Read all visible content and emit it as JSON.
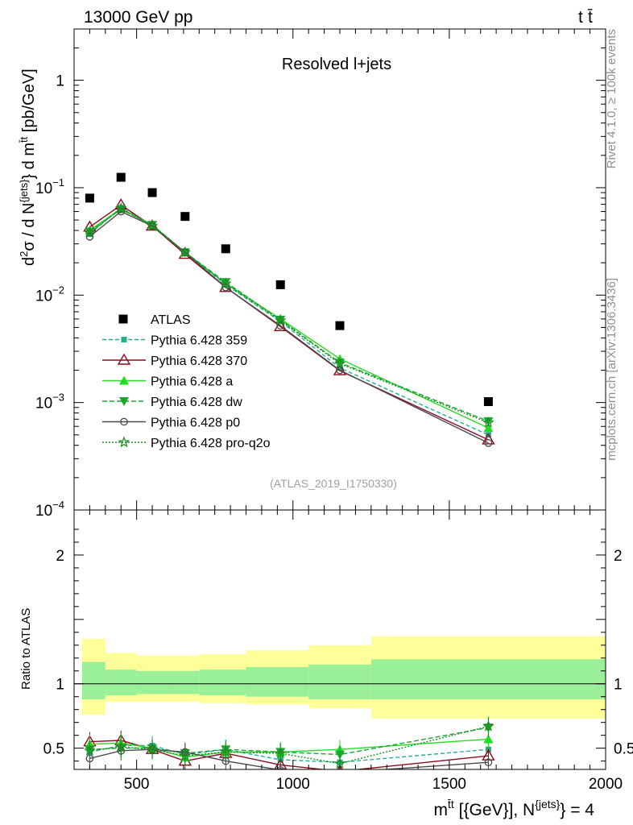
{
  "header": {
    "left": "13000 GeV pp",
    "right_base": "t",
    "right_bar": "t̄"
  },
  "side_labels": {
    "rivet": "Rivet 4.1.0, ≥ 100k events",
    "mcplots": "mcplots.cern.ch [arXiv:1306.3436]"
  },
  "chart_data": [
    {
      "type": "line",
      "title": "Resolved l+jets",
      "watermark": "(ATLAS_2019_I1750330)",
      "ylabel": "d²σ / d N^{jets} d m^{t̄t} [pb/GeV]",
      "yscale": "log",
      "ylim": [
        0.0001,
        3
      ],
      "y_ticks": [
        {
          "value": 1,
          "base": "1",
          "exp": ""
        },
        {
          "value": 0.1,
          "base": "10",
          "exp": "−1"
        },
        {
          "value": 0.01,
          "base": "10",
          "exp": "−2"
        },
        {
          "value": 0.001,
          "base": "10",
          "exp": "−3"
        },
        {
          "value": 0.0001,
          "base": "10",
          "exp": "−4"
        }
      ],
      "xlim": [
        300,
        2000
      ],
      "x": [
        350,
        450,
        550,
        655,
        785,
        960,
        1150,
        1625
      ],
      "reference": {
        "name": "ATLAS",
        "values": [
          0.08,
          0.125,
          0.09,
          0.054,
          0.027,
          0.0125,
          0.0052,
          0.00102
        ]
      },
      "series": [
        {
          "name": "Pythia 6.428 359",
          "color": "#20b090",
          "dash": "5,3",
          "marker": "square",
          "values": [
            0.037,
            0.065,
            0.045,
            0.025,
            0.0125,
            0.0057,
            0.0021,
            0.0005
          ]
        },
        {
          "name": "Pythia 6.428 370",
          "color": "#8b0b1e",
          "dash": "",
          "marker": "triangle-open",
          "values": [
            0.043,
            0.069,
            0.044,
            0.024,
            0.0118,
            0.0051,
            0.00198,
            0.00045
          ]
        },
        {
          "name": "Pythia 6.428 a",
          "color": "#22dd22",
          "dash": "",
          "marker": "triangle",
          "values": [
            0.04,
            0.064,
            0.045,
            0.025,
            0.0128,
            0.006,
            0.00255,
            0.00058
          ]
        },
        {
          "name": "Pythia 6.428 dw",
          "color": "#16a830",
          "dash": "6,3",
          "marker": "triangle-down",
          "values": [
            0.039,
            0.063,
            0.045,
            0.025,
            0.0132,
            0.0059,
            0.00235,
            0.00067
          ]
        },
        {
          "name": "Pythia 6.428 p0",
          "color": "#4a4a4a",
          "dash": "",
          "marker": "circle-open",
          "values": [
            0.035,
            0.06,
            0.044,
            0.025,
            0.0118,
            0.0052,
            0.002,
            0.00042
          ]
        },
        {
          "name": "Pythia 6.428 pro-q2o",
          "color": "#1f8c1f",
          "dash": "2,2",
          "marker": "star",
          "values": [
            0.038,
            0.064,
            0.044,
            0.025,
            0.0128,
            0.0058,
            0.0023,
            0.00065
          ]
        }
      ]
    },
    {
      "type": "line",
      "ylabel": "Ratio to ATLAS",
      "ylim": [
        0.335,
        2.35
      ],
      "y_ticks": [
        0.5,
        1,
        2
      ],
      "y_tick_labels": [
        "0.5",
        "1",
        "2"
      ],
      "xlim": [
        300,
        2000
      ],
      "x_ticks": [
        500,
        1000,
        1500,
        2000
      ],
      "x_tick_labels": [
        "500",
        "1000",
        "1500",
        "2000"
      ],
      "xlabel": "m^{t̄t} [{GeV}], N^{jets} = 4",
      "bins": [
        [
          300,
          400
        ],
        [
          400,
          500
        ],
        [
          500,
          600
        ],
        [
          600,
          700
        ],
        [
          700,
          850
        ],
        [
          850,
          1050
        ],
        [
          1050,
          1250
        ],
        [
          1250,
          2000
        ]
      ],
      "bands": {
        "stat_low": [
          0.88,
          0.91,
          0.92,
          0.92,
          0.91,
          0.9,
          0.88,
          0.88
        ],
        "stat_high": [
          1.17,
          1.11,
          1.1,
          1.1,
          1.11,
          1.13,
          1.15,
          1.19
        ],
        "total_low": [
          0.76,
          0.86,
          0.86,
          0.86,
          0.85,
          0.84,
          0.81,
          0.73
        ],
        "total_high": [
          1.35,
          1.24,
          1.22,
          1.22,
          1.23,
          1.26,
          1.3,
          1.37
        ]
      },
      "series": [
        {
          "name": "Pythia 6.428 359",
          "values": [
            0.47,
            0.52,
            0.52,
            0.45,
            0.49,
            0.41,
            0.39,
            0.49
          ]
        },
        {
          "name": "Pythia 6.428 370",
          "values": [
            0.55,
            0.56,
            0.49,
            0.4,
            0.46,
            0.37,
            0.32,
            0.44
          ]
        },
        {
          "name": "Pythia 6.428 a",
          "values": [
            0.53,
            0.54,
            0.5,
            0.43,
            0.47,
            0.47,
            0.49,
            0.57
          ]
        },
        {
          "name": "Pythia 6.428 dw",
          "values": [
            0.49,
            0.5,
            0.5,
            0.46,
            0.49,
            0.47,
            0.45,
            0.66
          ]
        },
        {
          "name": "Pythia 6.428 p0",
          "values": [
            0.42,
            0.48,
            0.49,
            0.47,
            0.4,
            0.33,
            0.31,
            0.39
          ]
        },
        {
          "name": "Pythia 6.428 pro-q2o",
          "values": [
            0.48,
            0.51,
            0.49,
            0.44,
            0.47,
            0.46,
            0.38,
            0.67
          ]
        }
      ]
    }
  ]
}
